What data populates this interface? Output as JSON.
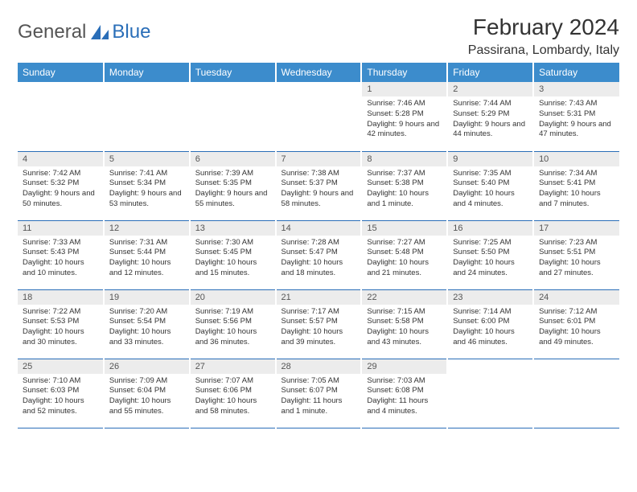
{
  "logo": {
    "general": "General",
    "blue": "Blue"
  },
  "title": "February 2024",
  "location": "Passirana, Lombardy, Italy",
  "colors": {
    "header_bg": "#3c8ccc",
    "header_text": "#ffffff",
    "daynum_bg": "#ececec",
    "rule": "#2a6eb8",
    "text": "#333333",
    "logo_blue": "#2a6eb8",
    "logo_gray": "#555555"
  },
  "weekdays": [
    "Sunday",
    "Monday",
    "Tuesday",
    "Wednesday",
    "Thursday",
    "Friday",
    "Saturday"
  ],
  "weeks": [
    [
      {
        "n": "",
        "sr": "",
        "ss": "",
        "dl": ""
      },
      {
        "n": "",
        "sr": "",
        "ss": "",
        "dl": ""
      },
      {
        "n": "",
        "sr": "",
        "ss": "",
        "dl": ""
      },
      {
        "n": "",
        "sr": "",
        "ss": "",
        "dl": ""
      },
      {
        "n": "1",
        "sr": "Sunrise: 7:46 AM",
        "ss": "Sunset: 5:28 PM",
        "dl": "Daylight: 9 hours and 42 minutes."
      },
      {
        "n": "2",
        "sr": "Sunrise: 7:44 AM",
        "ss": "Sunset: 5:29 PM",
        "dl": "Daylight: 9 hours and 44 minutes."
      },
      {
        "n": "3",
        "sr": "Sunrise: 7:43 AM",
        "ss": "Sunset: 5:31 PM",
        "dl": "Daylight: 9 hours and 47 minutes."
      }
    ],
    [
      {
        "n": "4",
        "sr": "Sunrise: 7:42 AM",
        "ss": "Sunset: 5:32 PM",
        "dl": "Daylight: 9 hours and 50 minutes."
      },
      {
        "n": "5",
        "sr": "Sunrise: 7:41 AM",
        "ss": "Sunset: 5:34 PM",
        "dl": "Daylight: 9 hours and 53 minutes."
      },
      {
        "n": "6",
        "sr": "Sunrise: 7:39 AM",
        "ss": "Sunset: 5:35 PM",
        "dl": "Daylight: 9 hours and 55 minutes."
      },
      {
        "n": "7",
        "sr": "Sunrise: 7:38 AM",
        "ss": "Sunset: 5:37 PM",
        "dl": "Daylight: 9 hours and 58 minutes."
      },
      {
        "n": "8",
        "sr": "Sunrise: 7:37 AM",
        "ss": "Sunset: 5:38 PM",
        "dl": "Daylight: 10 hours and 1 minute."
      },
      {
        "n": "9",
        "sr": "Sunrise: 7:35 AM",
        "ss": "Sunset: 5:40 PM",
        "dl": "Daylight: 10 hours and 4 minutes."
      },
      {
        "n": "10",
        "sr": "Sunrise: 7:34 AM",
        "ss": "Sunset: 5:41 PM",
        "dl": "Daylight: 10 hours and 7 minutes."
      }
    ],
    [
      {
        "n": "11",
        "sr": "Sunrise: 7:33 AM",
        "ss": "Sunset: 5:43 PM",
        "dl": "Daylight: 10 hours and 10 minutes."
      },
      {
        "n": "12",
        "sr": "Sunrise: 7:31 AM",
        "ss": "Sunset: 5:44 PM",
        "dl": "Daylight: 10 hours and 12 minutes."
      },
      {
        "n": "13",
        "sr": "Sunrise: 7:30 AM",
        "ss": "Sunset: 5:45 PM",
        "dl": "Daylight: 10 hours and 15 minutes."
      },
      {
        "n": "14",
        "sr": "Sunrise: 7:28 AM",
        "ss": "Sunset: 5:47 PM",
        "dl": "Daylight: 10 hours and 18 minutes."
      },
      {
        "n": "15",
        "sr": "Sunrise: 7:27 AM",
        "ss": "Sunset: 5:48 PM",
        "dl": "Daylight: 10 hours and 21 minutes."
      },
      {
        "n": "16",
        "sr": "Sunrise: 7:25 AM",
        "ss": "Sunset: 5:50 PM",
        "dl": "Daylight: 10 hours and 24 minutes."
      },
      {
        "n": "17",
        "sr": "Sunrise: 7:23 AM",
        "ss": "Sunset: 5:51 PM",
        "dl": "Daylight: 10 hours and 27 minutes."
      }
    ],
    [
      {
        "n": "18",
        "sr": "Sunrise: 7:22 AM",
        "ss": "Sunset: 5:53 PM",
        "dl": "Daylight: 10 hours and 30 minutes."
      },
      {
        "n": "19",
        "sr": "Sunrise: 7:20 AM",
        "ss": "Sunset: 5:54 PM",
        "dl": "Daylight: 10 hours and 33 minutes."
      },
      {
        "n": "20",
        "sr": "Sunrise: 7:19 AM",
        "ss": "Sunset: 5:56 PM",
        "dl": "Daylight: 10 hours and 36 minutes."
      },
      {
        "n": "21",
        "sr": "Sunrise: 7:17 AM",
        "ss": "Sunset: 5:57 PM",
        "dl": "Daylight: 10 hours and 39 minutes."
      },
      {
        "n": "22",
        "sr": "Sunrise: 7:15 AM",
        "ss": "Sunset: 5:58 PM",
        "dl": "Daylight: 10 hours and 43 minutes."
      },
      {
        "n": "23",
        "sr": "Sunrise: 7:14 AM",
        "ss": "Sunset: 6:00 PM",
        "dl": "Daylight: 10 hours and 46 minutes."
      },
      {
        "n": "24",
        "sr": "Sunrise: 7:12 AM",
        "ss": "Sunset: 6:01 PM",
        "dl": "Daylight: 10 hours and 49 minutes."
      }
    ],
    [
      {
        "n": "25",
        "sr": "Sunrise: 7:10 AM",
        "ss": "Sunset: 6:03 PM",
        "dl": "Daylight: 10 hours and 52 minutes."
      },
      {
        "n": "26",
        "sr": "Sunrise: 7:09 AM",
        "ss": "Sunset: 6:04 PM",
        "dl": "Daylight: 10 hours and 55 minutes."
      },
      {
        "n": "27",
        "sr": "Sunrise: 7:07 AM",
        "ss": "Sunset: 6:06 PM",
        "dl": "Daylight: 10 hours and 58 minutes."
      },
      {
        "n": "28",
        "sr": "Sunrise: 7:05 AM",
        "ss": "Sunset: 6:07 PM",
        "dl": "Daylight: 11 hours and 1 minute."
      },
      {
        "n": "29",
        "sr": "Sunrise: 7:03 AM",
        "ss": "Sunset: 6:08 PM",
        "dl": "Daylight: 11 hours and 4 minutes."
      },
      {
        "n": "",
        "sr": "",
        "ss": "",
        "dl": ""
      },
      {
        "n": "",
        "sr": "",
        "ss": "",
        "dl": ""
      }
    ]
  ]
}
